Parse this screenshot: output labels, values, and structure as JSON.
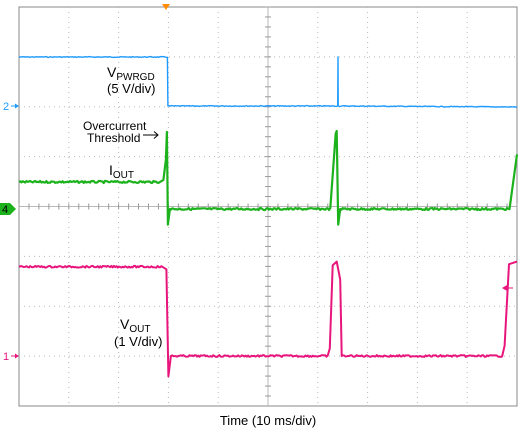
{
  "chart_data": {
    "type": "line",
    "xlabel": "Time (10 ms/div)",
    "x_divisions": 10,
    "y_divisions": 8,
    "trigger_marker_color": "#ff8c00",
    "channels": [
      {
        "id": "2",
        "marker_label": "2",
        "color": "#1e9bff",
        "label_main": "V",
        "label_sub": "PWRGD",
        "scale": "(5 V/div)",
        "points": [
          [
            0,
            5.0
          ],
          [
            29.8,
            5.0
          ],
          [
            29.9,
            0.0
          ],
          [
            64.0,
            0.0
          ],
          [
            64.05,
            5.0
          ],
          [
            64.1,
            0.0
          ],
          [
            100,
            -0.1
          ]
        ]
      },
      {
        "id": "4",
        "marker_label": "4",
        "color": "#1cb21c",
        "label_main": "I",
        "label_sub": "OUT",
        "points": [
          [
            0,
            0.52
          ],
          [
            28.0,
            0.52
          ],
          [
            29.0,
            0.56
          ],
          [
            29.5,
            0.95
          ],
          [
            29.7,
            1.48
          ],
          [
            29.9,
            -0.3
          ],
          [
            30.3,
            0.0
          ],
          [
            62.5,
            0.0
          ],
          [
            63.6,
            1.45
          ],
          [
            63.8,
            1.5
          ],
          [
            64.1,
            -0.3
          ],
          [
            64.5,
            0.0
          ],
          [
            98.5,
            0.0
          ],
          [
            100,
            1.05
          ]
        ]
      },
      {
        "id": "1",
        "marker_label": "1",
        "color": "#e8157c",
        "label_main": "V",
        "label_sub": "OUT",
        "scale": "(1 V/div)",
        "points": [
          [
            0,
            1.75
          ],
          [
            28.6,
            1.75
          ],
          [
            29.6,
            1.7
          ],
          [
            30.0,
            -0.4
          ],
          [
            30.5,
            0.0
          ],
          [
            62.0,
            0.0
          ],
          [
            62.4,
            0.15
          ],
          [
            63.0,
            1.78
          ],
          [
            63.8,
            1.85
          ],
          [
            64.5,
            1.5
          ],
          [
            64.8,
            0.0
          ],
          [
            97.0,
            0.0
          ],
          [
            97.5,
            0.2
          ],
          [
            98.4,
            1.8
          ],
          [
            100,
            1.85
          ]
        ]
      }
    ],
    "annotations": [
      {
        "text_line1": "Overcurrent",
        "text_line2": "Threshold",
        "arrow": "right",
        "target": "I OUT peak"
      }
    ],
    "grid": true
  }
}
